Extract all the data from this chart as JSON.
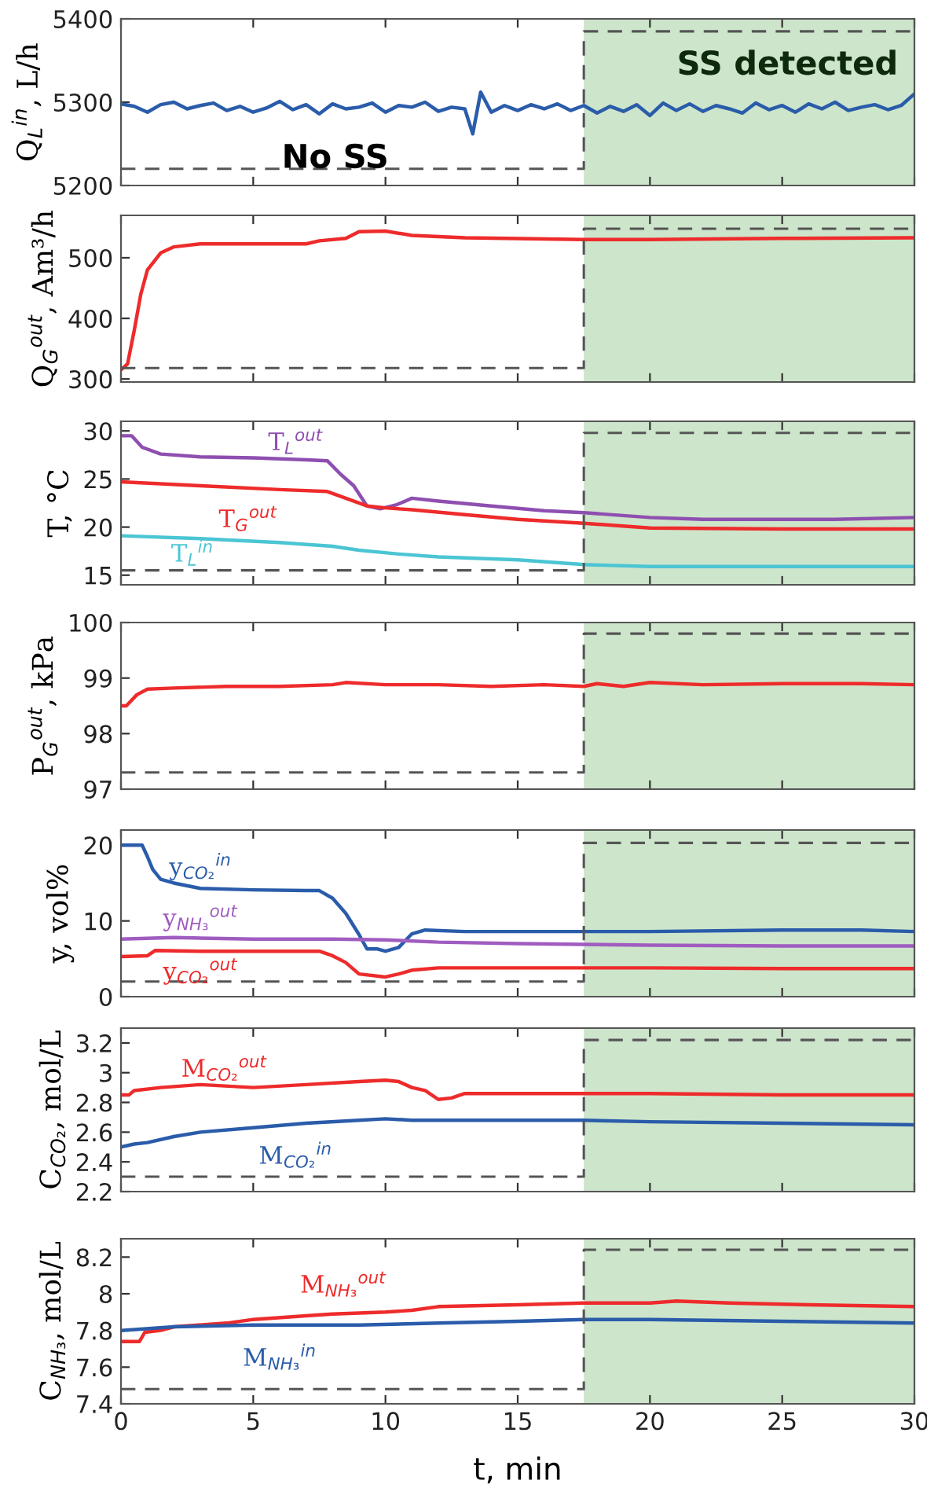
{
  "chart_data": [
    {
      "type": "line",
      "ylabel": "Q$_{L}$$^{in}$, L/h",
      "xlim": [
        0,
        30
      ],
      "xticks": [
        0,
        5,
        10,
        15,
        20,
        25,
        30
      ],
      "ylim": [
        5200,
        5400
      ],
      "yticks": [
        5200,
        5300,
        5400
      ],
      "tick_labels": "y",
      "annotations": [
        "SS detected",
        "No SS"
      ],
      "bands": [
        {
          "axis": "x",
          "from": 17.5,
          "to": 30,
          "color": "#cde5cb"
        }
      ],
      "series": [
        {
          "color": "#2a5caa",
          "x": [
            0,
            0.5,
            1,
            1.5,
            2,
            2.5,
            3,
            3.5,
            4,
            4.5,
            5,
            5.5,
            6,
            6.5,
            7,
            7.5,
            8,
            8.5,
            9,
            9.5,
            10,
            10.5,
            11,
            11.5,
            12,
            12.5,
            13,
            13.3,
            13.6,
            14,
            14.5,
            15,
            15.5,
            16,
            16.5,
            17,
            17.5,
            18,
            18.5,
            19,
            19.5,
            20,
            20.5,
            21,
            21.5,
            22,
            22.5,
            23,
            23.5,
            24,
            24.5,
            25,
            25.5,
            26,
            26.5,
            27,
            27.5,
            28,
            28.5,
            29,
            29.5,
            30
          ],
          "values": [
            5298,
            5295,
            5288,
            5297,
            5300,
            5292,
            5296,
            5299,
            5290,
            5295,
            5288,
            5293,
            5301,
            5291,
            5297,
            5286,
            5298,
            5292,
            5294,
            5299,
            5288,
            5296,
            5294,
            5300,
            5289,
            5294,
            5292,
            5262,
            5312,
            5288,
            5296,
            5290,
            5297,
            5292,
            5298,
            5290,
            5296,
            5287,
            5295,
            5289,
            5297,
            5284,
            5299,
            5290,
            5298,
            5289,
            5296,
            5292,
            5287,
            5299,
            5291,
            5296,
            5288,
            5298,
            5292,
            5300,
            5290,
            5294,
            5297,
            5291,
            5296,
            5310
          ]
        },
        {
          "color": "#555555",
          "line_style": "dashed",
          "x": [
            0,
            17.5,
            17.5,
            30
          ],
          "values": [
            5220,
            5220,
            5385,
            5385
          ]
        }
      ]
    },
    {
      "type": "line",
      "ylabel": "Q$_{G}$$^{out}$, Am³/h",
      "xlim": [
        0,
        30
      ],
      "xticks": [
        0,
        5,
        10,
        15,
        20,
        25,
        30
      ],
      "ylim": [
        295,
        570
      ],
      "yticks": [
        300,
        400,
        500
      ],
      "tick_labels": "y",
      "bands": [
        {
          "axis": "x",
          "from": 17.5,
          "to": 30,
          "color": "#cde5cb"
        }
      ],
      "series": [
        {
          "color": "#ee2b2b",
          "x": [
            0,
            0.25,
            0.5,
            0.75,
            1,
            1.5,
            2,
            3,
            5,
            7,
            7.5,
            8.5,
            9,
            10,
            11,
            13,
            17.5,
            20,
            25,
            30
          ],
          "values": [
            315,
            325,
            380,
            440,
            480,
            508,
            518,
            523,
            523,
            523,
            528,
            532,
            543,
            544,
            537,
            533,
            530,
            530,
            532,
            533
          ]
        },
        {
          "color": "#555555",
          "line_style": "dashed",
          "x": [
            0,
            17.5,
            17.5,
            30
          ],
          "values": [
            318,
            318,
            548,
            548
          ]
        }
      ]
    },
    {
      "type": "line",
      "ylabel": "T, °C",
      "xlim": [
        0,
        30
      ],
      "xticks": [
        0,
        5,
        10,
        15,
        20,
        25,
        30
      ],
      "ylim": [
        14,
        31
      ],
      "yticks": [
        15,
        20,
        25,
        30
      ],
      "tick_labels": "y",
      "bands": [
        {
          "axis": "x",
          "from": 17.5,
          "to": 30,
          "color": "#cde5cb"
        }
      ],
      "series": [
        {
          "name": "T$_{L}$$^{out}$",
          "color": "#8e4fb0",
          "x": [
            0,
            0.4,
            0.8,
            1.5,
            3,
            5,
            7,
            7.8,
            8.3,
            8.8,
            9.3,
            9.8,
            10.4,
            11,
            12,
            14,
            16,
            17.5,
            20,
            22,
            27,
            30
          ],
          "values": [
            29.5,
            29.5,
            28.3,
            27.6,
            27.3,
            27.2,
            27.0,
            26.9,
            25.5,
            24.3,
            22.2,
            21.9,
            22.3,
            23.0,
            22.7,
            22.2,
            21.7,
            21.5,
            21.0,
            20.8,
            20.8,
            21.0
          ]
        },
        {
          "name": "T$_{G}$$^{out}$",
          "color": "#ee2b2b",
          "x": [
            0,
            3,
            6,
            7.8,
            8.5,
            9.3,
            10,
            11,
            13,
            15,
            17.5,
            20,
            25,
            30
          ],
          "values": [
            24.7,
            24.3,
            23.9,
            23.7,
            23.0,
            22.2,
            22.0,
            21.8,
            21.3,
            20.8,
            20.4,
            19.9,
            19.8,
            19.8
          ]
        },
        {
          "name": "T$_{L}$$^{in}$",
          "color": "#4bc5d3",
          "x": [
            0,
            3,
            6,
            8,
            9,
            10.5,
            12,
            15,
            17.5,
            20,
            25,
            30
          ],
          "values": [
            19.1,
            18.8,
            18.4,
            18.0,
            17.6,
            17.2,
            16.9,
            16.6,
            16.1,
            15.9,
            15.9,
            15.9
          ]
        },
        {
          "color": "#555555",
          "line_style": "dashed",
          "x": [
            0,
            17.5,
            17.5,
            30
          ],
          "values": [
            15.5,
            15.5,
            29.8,
            29.8
          ]
        }
      ]
    },
    {
      "type": "line",
      "ylabel": "P$_{G}$$^{out}$, kPa",
      "xlim": [
        0,
        30
      ],
      "xticks": [
        0,
        5,
        10,
        15,
        20,
        25,
        30
      ],
      "ylim": [
        97,
        100
      ],
      "yticks": [
        97,
        98,
        99,
        100
      ],
      "tick_labels": "y",
      "bands": [
        {
          "axis": "x",
          "from": 17.5,
          "to": 30,
          "color": "#cde5cb"
        }
      ],
      "series": [
        {
          "color": "#ee2b2b",
          "x": [
            0,
            0.2,
            0.6,
            1,
            2,
            4,
            6,
            8,
            8.5,
            10,
            12,
            14,
            16,
            17.5,
            18,
            19,
            20,
            22,
            25,
            28,
            30
          ],
          "values": [
            98.5,
            98.5,
            98.7,
            98.8,
            98.82,
            98.85,
            98.85,
            98.88,
            98.92,
            98.88,
            98.88,
            98.85,
            98.88,
            98.85,
            98.9,
            98.85,
            98.92,
            98.88,
            98.9,
            98.9,
            98.88
          ]
        },
        {
          "color": "#555555",
          "line_style": "dashed",
          "x": [
            0,
            17.5,
            17.5,
            30
          ],
          "values": [
            97.3,
            97.3,
            99.8,
            99.8
          ]
        }
      ]
    },
    {
      "type": "line",
      "ylabel": "y, vol%",
      "xlim": [
        0,
        30
      ],
      "xticks": [
        0,
        5,
        10,
        15,
        20,
        25,
        30
      ],
      "ylim": [
        0,
        22
      ],
      "yticks": [
        0,
        10,
        20
      ],
      "tick_labels": "y",
      "bands": [
        {
          "axis": "x",
          "from": 17.5,
          "to": 30,
          "color": "#cde5cb"
        }
      ],
      "series": [
        {
          "name": "y$_{CO₂}$$^{in}$",
          "color": "#2a5caa",
          "x": [
            0,
            0.8,
            1,
            1.2,
            1.5,
            2,
            3,
            5,
            7,
            7.5,
            8,
            8.5,
            9,
            9.3,
            9.7,
            10,
            10.5,
            11,
            11.5,
            13,
            17.5,
            20,
            25,
            28,
            30
          ],
          "values": [
            20,
            20,
            18.5,
            16.8,
            15.5,
            15,
            14.3,
            14.1,
            14.0,
            14.0,
            13,
            11,
            8.2,
            6.3,
            6.3,
            6.0,
            6.5,
            8.3,
            8.8,
            8.6,
            8.6,
            8.6,
            8.8,
            8.8,
            8.6
          ]
        },
        {
          "name": "y$_{NH₃}$$^{out}$",
          "color": "#a05cc0",
          "x": [
            0,
            2,
            5,
            8,
            10,
            12,
            15,
            17.5,
            20,
            25,
            30
          ],
          "values": [
            7.6,
            7.8,
            7.6,
            7.6,
            7.5,
            7.2,
            7.0,
            6.9,
            6.8,
            6.7,
            6.7
          ]
        },
        {
          "name": "y$_{CO₂}$$^{out}$",
          "color": "#ee2b2b",
          "x": [
            0,
            1,
            1.3,
            3,
            7.5,
            8,
            8.5,
            9,
            10,
            10.5,
            11,
            12,
            17.5,
            20,
            25,
            30
          ],
          "values": [
            5.3,
            5.4,
            6.1,
            6.0,
            6.0,
            5.4,
            4.5,
            3.0,
            2.6,
            3.0,
            3.5,
            3.8,
            3.8,
            3.8,
            3.7,
            3.7
          ]
        },
        {
          "color": "#555555",
          "line_style": "dashed",
          "x": [
            0,
            17.5,
            17.5,
            30
          ],
          "values": [
            2,
            2,
            20.3,
            20.3
          ]
        }
      ]
    },
    {
      "type": "line",
      "ylabel": "C$_{CO₂}$, mol/L",
      "xlim": [
        0,
        30
      ],
      "xticks": [
        0,
        5,
        10,
        15,
        20,
        25,
        30
      ],
      "ylim": [
        2.2,
        3.3
      ],
      "yticks": [
        2.2,
        2.4,
        2.6,
        2.8,
        3,
        3.2
      ],
      "tick_labels": "y",
      "bands": [
        {
          "axis": "x",
          "from": 17.5,
          "to": 30,
          "color": "#cde5cb"
        }
      ],
      "series": [
        {
          "name": "M$_{CO₂}$$^{out}$",
          "color": "#ee2b2b",
          "x": [
            0,
            0.3,
            0.5,
            1.5,
            3,
            5,
            7,
            9,
            10,
            10.5,
            11,
            11.5,
            12,
            12.5,
            13,
            17.5,
            20,
            25,
            30
          ],
          "values": [
            2.85,
            2.85,
            2.88,
            2.9,
            2.92,
            2.9,
            2.92,
            2.94,
            2.95,
            2.94,
            2.9,
            2.88,
            2.82,
            2.83,
            2.86,
            2.86,
            2.86,
            2.85,
            2.85
          ]
        },
        {
          "name": "M$_{CO₂}$$^{in}$",
          "color": "#2a5caa",
          "x": [
            0,
            0.5,
            1,
            2,
            3,
            5,
            7,
            9,
            10,
            11,
            13,
            17.5,
            20,
            25,
            30
          ],
          "values": [
            2.5,
            2.52,
            2.53,
            2.57,
            2.6,
            2.63,
            2.66,
            2.68,
            2.69,
            2.68,
            2.68,
            2.68,
            2.67,
            2.66,
            2.65
          ]
        },
        {
          "color": "#555555",
          "line_style": "dashed",
          "x": [
            0,
            17.5,
            17.5,
            30
          ],
          "values": [
            2.3,
            2.3,
            3.22,
            3.22
          ]
        }
      ]
    },
    {
      "type": "line",
      "ylabel": "C$_{NH₃}$, mol/L",
      "xlabel": "t, min",
      "xlim": [
        0,
        30
      ],
      "xticks": [
        0,
        5,
        10,
        15,
        20,
        25,
        30
      ],
      "ylim": [
        7.4,
        8.3
      ],
      "yticks": [
        7.4,
        7.6,
        7.8,
        8,
        8.2
      ],
      "bands": [
        {
          "axis": "x",
          "from": 17.5,
          "to": 30,
          "color": "#cde5cb"
        }
      ],
      "series": [
        {
          "name": "M$_{NH₃}$$^{out}$",
          "color": "#ee2b2b",
          "x": [
            0,
            0.7,
            0.9,
            1.5,
            2,
            4,
            5,
            7,
            8,
            10,
            11,
            12,
            15,
            17.5,
            20,
            21,
            23,
            26,
            30
          ],
          "values": [
            7.74,
            7.74,
            7.79,
            7.8,
            7.82,
            7.84,
            7.86,
            7.88,
            7.89,
            7.9,
            7.91,
            7.93,
            7.94,
            7.95,
            7.95,
            7.96,
            7.95,
            7.94,
            7.93
          ]
        },
        {
          "name": "M$_{NH₃}$$^{in}$",
          "color": "#2a5caa",
          "x": [
            0,
            2,
            5,
            9,
            12,
            15,
            17.5,
            20,
            25,
            30
          ],
          "values": [
            7.8,
            7.82,
            7.83,
            7.83,
            7.84,
            7.85,
            7.86,
            7.86,
            7.85,
            7.84
          ]
        },
        {
          "color": "#555555",
          "line_style": "dashed",
          "x": [
            0,
            17.5,
            17.5,
            30
          ],
          "values": [
            7.48,
            7.48,
            8.24,
            8.24
          ]
        }
      ]
    }
  ]
}
